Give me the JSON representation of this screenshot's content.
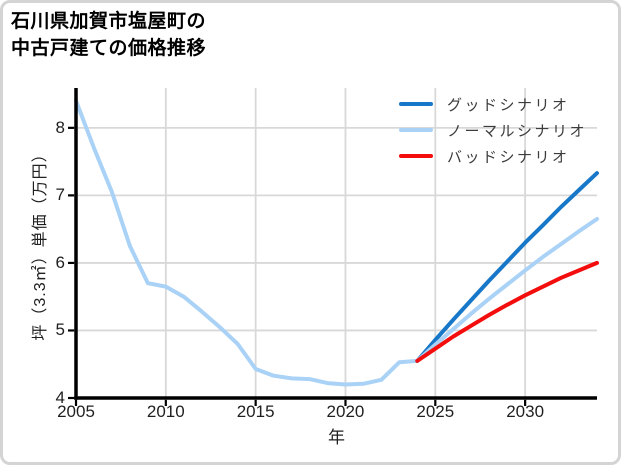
{
  "title": {
    "line1": "石川県加賀市塩屋町の",
    "line2": "中古戸建ての価格推移"
  },
  "chart_data": {
    "type": "line",
    "title": "石川県加賀市塩屋町の中古戸建ての価格推移",
    "xlabel": "年",
    "ylabel": "坪（3.3㎡）単価（万円）",
    "xlim": [
      2005,
      2034
    ],
    "ylim": [
      4,
      8.59
    ],
    "xticks": [
      2005,
      2010,
      2015,
      2020,
      2025,
      2030
    ],
    "yticks": [
      4,
      5,
      6,
      7,
      8
    ],
    "grid": true,
    "legend_position": "upper-right-inside",
    "colors": {
      "good": "#1777c8",
      "normal": "#a9d2f6",
      "history": "#a9d2f6",
      "bad": "#f40d0d",
      "grid": "#d8d8d8",
      "axis": "#000000"
    },
    "series": [
      {
        "id": "history",
        "in_legend": false,
        "color": "#a9d2f6",
        "x": [
          2005,
          2006,
          2007,
          2008,
          2009,
          2010,
          2011,
          2012,
          2013,
          2014,
          2015,
          2016,
          2017,
          2018,
          2019,
          2020,
          2021,
          2022,
          2023,
          2024
        ],
        "y": [
          8.4,
          7.7,
          7.05,
          6.25,
          5.7,
          5.65,
          5.5,
          5.28,
          5.05,
          4.8,
          4.43,
          4.33,
          4.29,
          4.28,
          4.22,
          4.2,
          4.21,
          4.27,
          4.53,
          4.55
        ]
      },
      {
        "id": "good-scenario",
        "label": "グッドシナリオ",
        "in_legend": true,
        "color": "#1777c8",
        "x": [
          2024,
          2025,
          2026,
          2027,
          2028,
          2029,
          2030,
          2031,
          2032,
          2033,
          2034
        ],
        "y": [
          4.55,
          4.86,
          5.16,
          5.45,
          5.74,
          6.02,
          6.3,
          6.56,
          6.83,
          7.08,
          7.33
        ]
      },
      {
        "id": "normal-scenario",
        "label": "ノーマルシナリオ",
        "in_legend": true,
        "color": "#a9d2f6",
        "x": [
          2024,
          2025,
          2026,
          2027,
          2028,
          2029,
          2030,
          2031,
          2032,
          2033,
          2034
        ],
        "y": [
          4.55,
          4.79,
          5.02,
          5.25,
          5.47,
          5.68,
          5.89,
          6.09,
          6.28,
          6.47,
          6.65
        ]
      },
      {
        "id": "bad-scenario",
        "label": "バッドシナリオ",
        "in_legend": true,
        "color": "#f40d0d",
        "x": [
          2024,
          2025,
          2026,
          2027,
          2028,
          2029,
          2030,
          2031,
          2032,
          2033,
          2034
        ],
        "y": [
          4.55,
          4.73,
          4.91,
          5.07,
          5.23,
          5.38,
          5.52,
          5.65,
          5.78,
          5.89,
          6.0
        ]
      }
    ]
  }
}
